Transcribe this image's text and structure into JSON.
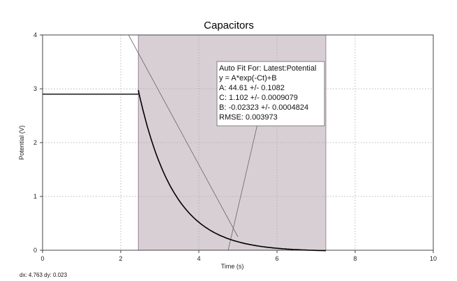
{
  "colors": {
    "selection": "#b8a7b0",
    "selection_border": "#8a6f80",
    "data_line": "#222222",
    "fit_line": "#000000",
    "grid": "#c9c9c9"
  },
  "status_text": "dx: 4.763 dy: 0.023",
  "chart_data": {
    "type": "line",
    "title": "Capacitors",
    "xlabel": "Time (s)",
    "ylabel": "Potential (V)",
    "xlim": [
      0,
      10
    ],
    "ylim": [
      0,
      4
    ],
    "xticks": [
      0,
      2,
      4,
      6,
      8,
      10
    ],
    "yticks": [
      0,
      1,
      2,
      3,
      4
    ],
    "grid": true,
    "selection_range": [
      2.45,
      7.25
    ],
    "series": [
      {
        "name": "Latest:Potential",
        "style": "flat then exponential decay",
        "flat_value": 2.9,
        "x_end": 7.25
      }
    ],
    "fit": {
      "x_range": [
        2.45,
        7.25
      ],
      "A": 44.61,
      "C": 1.102,
      "B": -0.02323,
      "lines": [
        "Auto Fit For:  Latest:Potential",
        "y = A*exp(-Ct)+B",
        "A: 44.61 +/- 0.1082",
        "C: 1.102 +/- 0.0009079",
        "B: -0.02323 +/- 0.0004824",
        "RMSE: 0.003973"
      ]
    },
    "annotations": [
      {
        "type": "tangent-line",
        "from": [
          2.2,
          4.2
        ],
        "to": [
          5.0,
          0.25
        ]
      },
      {
        "type": "tangent-line",
        "from": [
          4.75,
          0.0
        ],
        "to": [
          5.55,
          2.5
        ]
      }
    ]
  }
}
